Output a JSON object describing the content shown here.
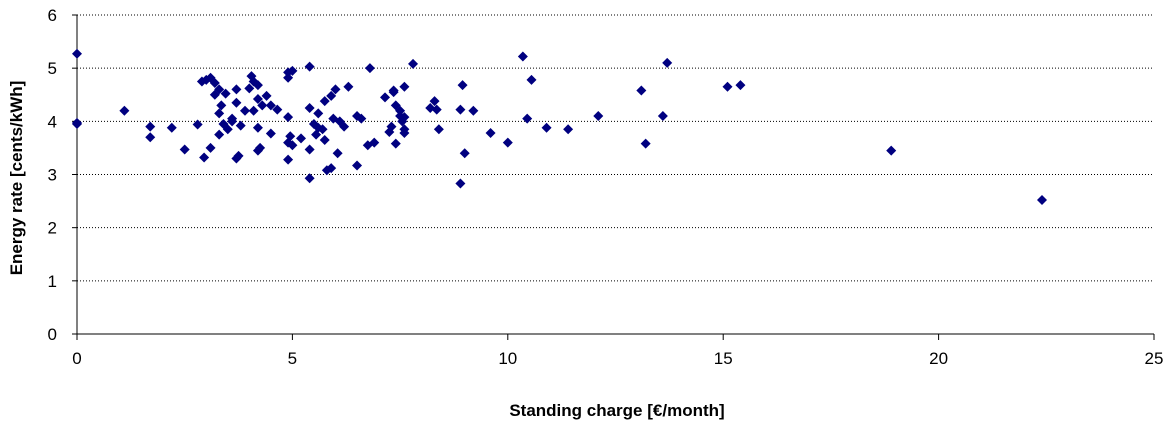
{
  "chart_data": {
    "type": "scatter",
    "xlabel": "Standing charge [€/month]",
    "ylabel": "Energy rate [cents/kWh]",
    "xlim": [
      0,
      25
    ],
    "ylim": [
      0,
      6
    ],
    "xticks": [
      "0",
      "5",
      "10",
      "15",
      "20",
      "25"
    ],
    "yticks": [
      "0",
      "1",
      "2",
      "3",
      "4",
      "5",
      "6"
    ],
    "grid": "horizontal dotted",
    "legend": "none",
    "marker_color": "#000080",
    "marker": "diamond",
    "points": [
      [
        0,
        5.27
      ],
      [
        0,
        3.97
      ],
      [
        0,
        3.95
      ],
      [
        1.1,
        4.2
      ],
      [
        1.7,
        3.9
      ],
      [
        1.7,
        3.7
      ],
      [
        2.2,
        3.88
      ],
      [
        2.5,
        3.47
      ],
      [
        2.8,
        3.94
      ],
      [
        2.9,
        4.75
      ],
      [
        3.0,
        4.78
      ],
      [
        3.1,
        4.82
      ],
      [
        3.2,
        4.72
      ],
      [
        2.95,
        3.32
      ],
      [
        3.1,
        3.5
      ],
      [
        3.2,
        4.5
      ],
      [
        3.3,
        4.6
      ],
      [
        3.35,
        4.3
      ],
      [
        3.3,
        4.15
      ],
      [
        3.45,
        4.52
      ],
      [
        3.3,
        3.75
      ],
      [
        3.4,
        3.95
      ],
      [
        3.5,
        3.85
      ],
      [
        3.6,
        4.0
      ],
      [
        3.7,
        4.35
      ],
      [
        3.7,
        4.6
      ],
      [
        3.6,
        4.05
      ],
      [
        3.8,
        3.92
      ],
      [
        3.7,
        3.3
      ],
      [
        3.75,
        3.35
      ],
      [
        3.9,
        4.2
      ],
      [
        4.0,
        4.62
      ],
      [
        4.05,
        4.85
      ],
      [
        4.1,
        4.75
      ],
      [
        4.1,
        4.2
      ],
      [
        4.2,
        4.68
      ],
      [
        4.2,
        4.42
      ],
      [
        4.2,
        3.88
      ],
      [
        4.2,
        3.45
      ],
      [
        4.25,
        3.5
      ],
      [
        4.3,
        4.3
      ],
      [
        4.4,
        4.48
      ],
      [
        4.5,
        4.3
      ],
      [
        4.5,
        3.77
      ],
      [
        4.65,
        4.22
      ],
      [
        4.9,
        4.82
      ],
      [
        4.9,
        4.92
      ],
      [
        5.0,
        4.95
      ],
      [
        4.9,
        4.08
      ],
      [
        4.9,
        3.6
      ],
      [
        4.95,
        3.72
      ],
      [
        5.0,
        3.55
      ],
      [
        4.9,
        3.28
      ],
      [
        5.2,
        3.68
      ],
      [
        5.4,
        5.03
      ],
      [
        5.4,
        4.25
      ],
      [
        5.4,
        3.47
      ],
      [
        5.4,
        2.93
      ],
      [
        5.5,
        3.95
      ],
      [
        5.55,
        3.75
      ],
      [
        5.6,
        4.15
      ],
      [
        5.6,
        3.88
      ],
      [
        5.7,
        3.85
      ],
      [
        5.75,
        3.65
      ],
      [
        5.75,
        4.38
      ],
      [
        5.8,
        3.08
      ],
      [
        5.9,
        3.12
      ],
      [
        5.9,
        4.48
      ],
      [
        5.95,
        4.05
      ],
      [
        6.0,
        4.6
      ],
      [
        6.05,
        3.4
      ],
      [
        6.1,
        4.0
      ],
      [
        6.2,
        3.9
      ],
      [
        6.3,
        4.65
      ],
      [
        6.5,
        4.1
      ],
      [
        6.5,
        3.17
      ],
      [
        6.6,
        4.05
      ],
      [
        6.8,
        5.0
      ],
      [
        6.75,
        3.55
      ],
      [
        6.9,
        3.6
      ],
      [
        7.15,
        4.45
      ],
      [
        7.25,
        3.8
      ],
      [
        7.3,
        3.9
      ],
      [
        7.35,
        4.58
      ],
      [
        7.35,
        4.55
      ],
      [
        7.4,
        4.3
      ],
      [
        7.4,
        3.58
      ],
      [
        7.5,
        4.1
      ],
      [
        7.5,
        4.2
      ],
      [
        7.55,
        4.0
      ],
      [
        7.6,
        3.85
      ],
      [
        7.6,
        3.78
      ],
      [
        7.6,
        4.65
      ],
      [
        7.6,
        4.08
      ],
      [
        7.8,
        5.08
      ],
      [
        8.2,
        4.25
      ],
      [
        8.3,
        4.38
      ],
      [
        8.35,
        4.22
      ],
      [
        8.4,
        3.85
      ],
      [
        8.9,
        4.22
      ],
      [
        8.95,
        4.68
      ],
      [
        9.0,
        3.4
      ],
      [
        8.9,
        2.83
      ],
      [
        9.2,
        4.2
      ],
      [
        9.6,
        3.78
      ],
      [
        10.0,
        3.6
      ],
      [
        10.35,
        5.22
      ],
      [
        10.45,
        4.05
      ],
      [
        10.55,
        4.78
      ],
      [
        10.9,
        3.88
      ],
      [
        11.4,
        3.85
      ],
      [
        12.1,
        4.1
      ],
      [
        13.1,
        4.58
      ],
      [
        13.2,
        3.58
      ],
      [
        13.6,
        4.1
      ],
      [
        13.7,
        5.1
      ],
      [
        15.1,
        4.65
      ],
      [
        15.4,
        4.68
      ],
      [
        18.9,
        3.45
      ],
      [
        22.4,
        2.52
      ]
    ]
  }
}
